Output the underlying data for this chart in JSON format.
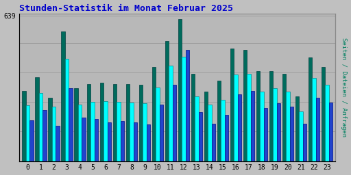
{
  "title": "Stunden-Statistik im Monat Februar 2025",
  "ylabel_right": "Seiten / Dateien / Anfragen",
  "hours": [
    0,
    1,
    2,
    3,
    4,
    5,
    6,
    7,
    8,
    9,
    10,
    11,
    12,
    13,
    14,
    15,
    16,
    17,
    18,
    19,
    20,
    21,
    22,
    23
  ],
  "seiten": [
    310,
    370,
    280,
    570,
    320,
    340,
    345,
    340,
    340,
    335,
    415,
    530,
    625,
    385,
    305,
    355,
    495,
    490,
    395,
    395,
    385,
    285,
    455,
    415
  ],
  "dateien": [
    245,
    300,
    240,
    450,
    250,
    260,
    265,
    260,
    258,
    255,
    325,
    420,
    460,
    285,
    250,
    270,
    380,
    385,
    305,
    320,
    305,
    218,
    365,
    335
  ],
  "anfragen": [
    180,
    225,
    155,
    320,
    190,
    185,
    170,
    175,
    170,
    160,
    250,
    335,
    490,
    215,
    165,
    205,
    295,
    310,
    235,
    255,
    240,
    165,
    280,
    258
  ],
  "color_seiten": "#006b5c",
  "color_dateien": "#00ffff",
  "color_anfragen": "#2244cc",
  "bar_width": 0.29,
  "background_color": "#c0c0c0",
  "plot_bg_color": "#b8b8b8",
  "title_color": "#0000cc",
  "grid_color": "#999999",
  "ymax": 639,
  "ylim": [
    0,
    650
  ],
  "yticks": [
    639
  ],
  "grid_yticks": [
    130,
    260,
    390,
    520,
    639
  ]
}
